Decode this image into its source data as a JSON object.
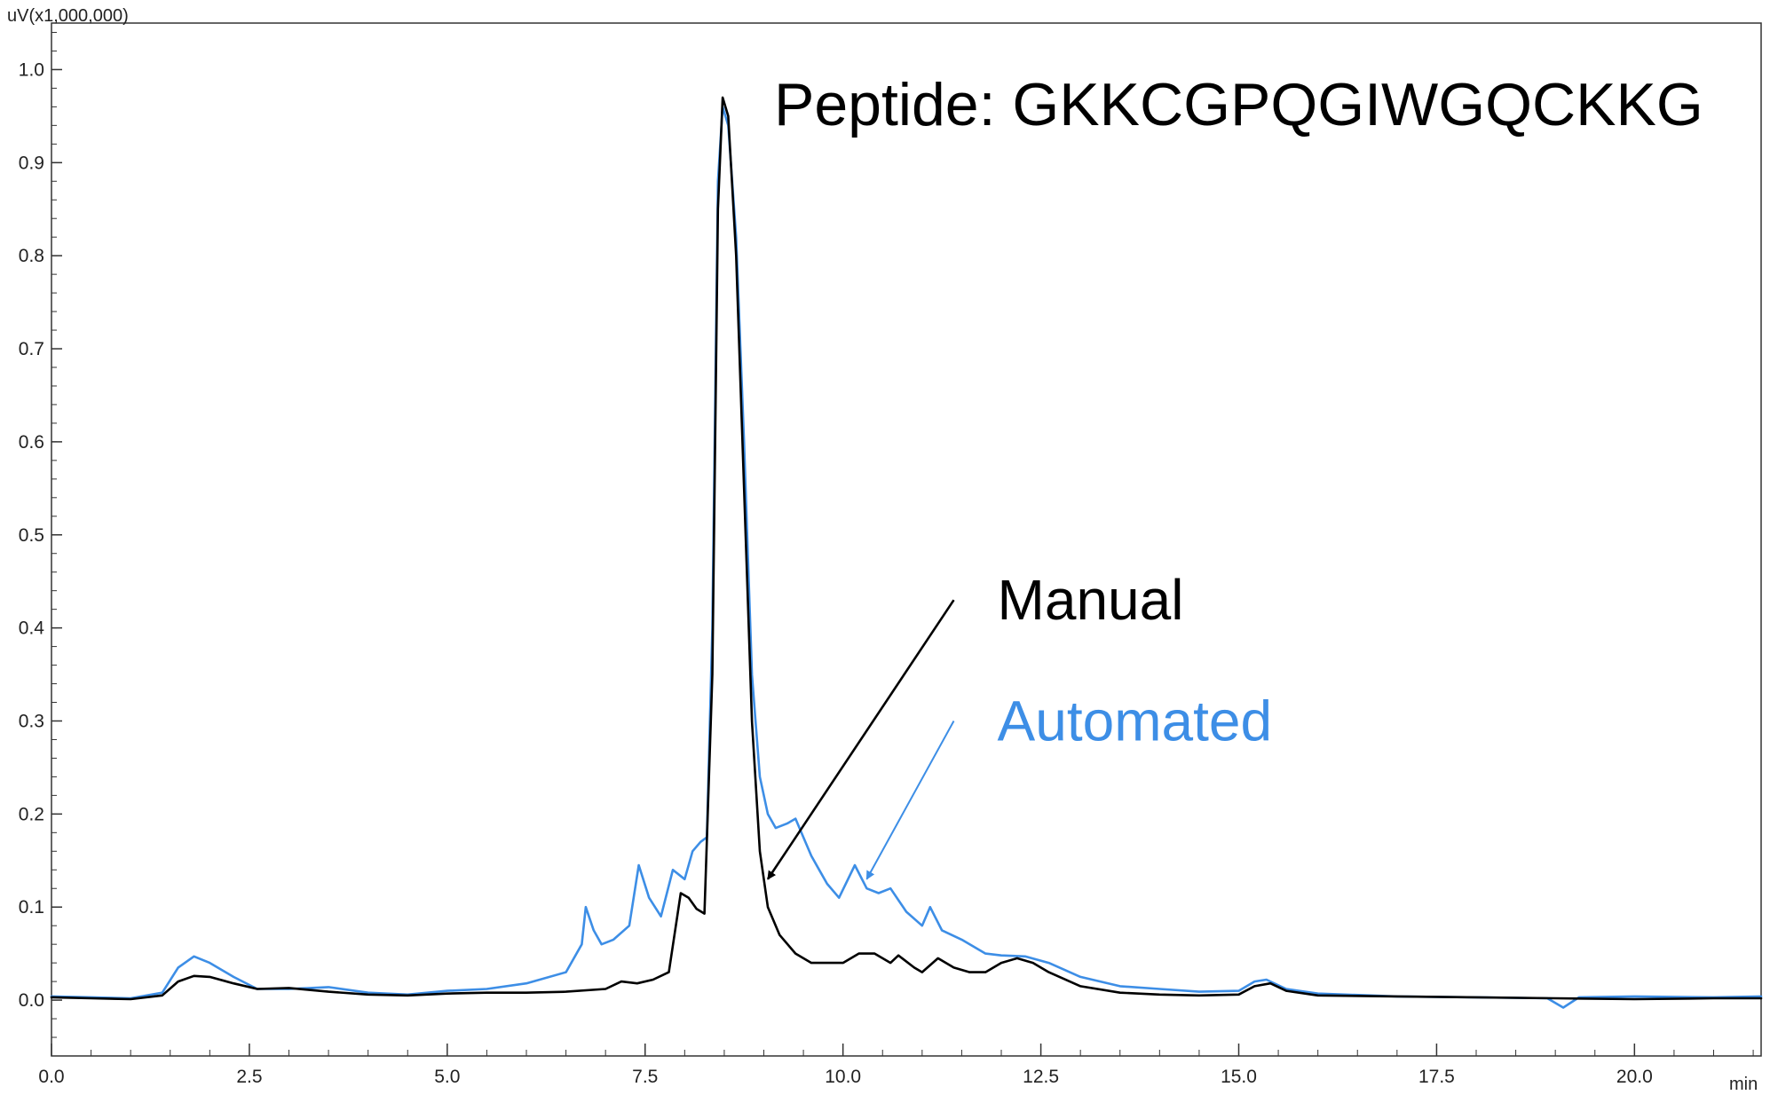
{
  "chart_data": {
    "type": "line",
    "title": "",
    "annotation_title": "Peptide: GKKCGPQGIWGQCKKG",
    "y_unit": "uV(x1,000,000)",
    "x_unit": "min",
    "xlim": [
      0,
      21.6
    ],
    "ylim": [
      -0.06,
      1.05
    ],
    "x_ticks": [
      "0.0",
      "2.5",
      "5.0",
      "7.5",
      "10.0",
      "12.5",
      "15.0",
      "17.5",
      "20.0"
    ],
    "y_ticks": [
      "0.0",
      "0.1",
      "0.2",
      "0.3",
      "0.4",
      "0.5",
      "0.6",
      "0.7",
      "0.8",
      "0.9",
      "1.0"
    ],
    "grid": false,
    "colors": {
      "manual": "#000000",
      "automated": "#3d8ee6",
      "axis": "#333333"
    },
    "series": [
      {
        "name": "Manual",
        "color": "#000000",
        "points": [
          [
            0,
            0.003
          ],
          [
            0.5,
            0.002
          ],
          [
            1.0,
            0.001
          ],
          [
            1.4,
            0.005
          ],
          [
            1.6,
            0.02
          ],
          [
            1.8,
            0.026
          ],
          [
            2.0,
            0.025
          ],
          [
            2.3,
            0.018
          ],
          [
            2.6,
            0.012
          ],
          [
            3.0,
            0.013
          ],
          [
            3.5,
            0.009
          ],
          [
            4.0,
            0.006
          ],
          [
            4.5,
            0.005
          ],
          [
            5.0,
            0.007
          ],
          [
            5.5,
            0.008
          ],
          [
            6.0,
            0.008
          ],
          [
            6.5,
            0.009
          ],
          [
            7.0,
            0.012
          ],
          [
            7.2,
            0.02
          ],
          [
            7.4,
            0.018
          ],
          [
            7.6,
            0.022
          ],
          [
            7.8,
            0.03
          ],
          [
            7.95,
            0.115
          ],
          [
            8.05,
            0.11
          ],
          [
            8.15,
            0.098
          ],
          [
            8.25,
            0.093
          ],
          [
            8.35,
            0.35
          ],
          [
            8.42,
            0.85
          ],
          [
            8.48,
            0.97
          ],
          [
            8.55,
            0.95
          ],
          [
            8.65,
            0.8
          ],
          [
            8.75,
            0.55
          ],
          [
            8.85,
            0.3
          ],
          [
            8.95,
            0.16
          ],
          [
            9.05,
            0.1
          ],
          [
            9.2,
            0.07
          ],
          [
            9.4,
            0.05
          ],
          [
            9.6,
            0.04
          ],
          [
            9.8,
            0.04
          ],
          [
            10.0,
            0.04
          ],
          [
            10.2,
            0.05
          ],
          [
            10.4,
            0.05
          ],
          [
            10.6,
            0.04
          ],
          [
            10.7,
            0.048
          ],
          [
            10.9,
            0.035
          ],
          [
            11.0,
            0.03
          ],
          [
            11.2,
            0.045
          ],
          [
            11.4,
            0.035
          ],
          [
            11.6,
            0.03
          ],
          [
            11.8,
            0.03
          ],
          [
            12.0,
            0.04
          ],
          [
            12.2,
            0.045
          ],
          [
            12.4,
            0.04
          ],
          [
            12.6,
            0.03
          ],
          [
            13.0,
            0.015
          ],
          [
            13.5,
            0.008
          ],
          [
            14.0,
            0.006
          ],
          [
            14.5,
            0.005
          ],
          [
            15.0,
            0.006
          ],
          [
            15.2,
            0.015
          ],
          [
            15.4,
            0.018
          ],
          [
            15.6,
            0.01
          ],
          [
            16.0,
            0.005
          ],
          [
            17.0,
            0.004
          ],
          [
            18.0,
            0.003
          ],
          [
            19.0,
            0.002
          ],
          [
            20.0,
            0.001
          ],
          [
            21.0,
            0.002
          ],
          [
            21.6,
            0.002
          ]
        ]
      },
      {
        "name": "Automated",
        "color": "#3d8ee6",
        "points": [
          [
            0,
            0.004
          ],
          [
            0.5,
            0.003
          ],
          [
            1.0,
            0.002
          ],
          [
            1.4,
            0.008
          ],
          [
            1.6,
            0.035
          ],
          [
            1.8,
            0.047
          ],
          [
            2.0,
            0.04
          ],
          [
            2.3,
            0.025
          ],
          [
            2.6,
            0.012
          ],
          [
            3.0,
            0.012
          ],
          [
            3.5,
            0.014
          ],
          [
            4.0,
            0.008
          ],
          [
            4.5,
            0.006
          ],
          [
            5.0,
            0.01
          ],
          [
            5.5,
            0.012
          ],
          [
            6.0,
            0.018
          ],
          [
            6.5,
            0.03
          ],
          [
            6.7,
            0.06
          ],
          [
            6.75,
            0.1
          ],
          [
            6.85,
            0.075
          ],
          [
            6.95,
            0.06
          ],
          [
            7.1,
            0.065
          ],
          [
            7.3,
            0.08
          ],
          [
            7.42,
            0.145
          ],
          [
            7.55,
            0.11
          ],
          [
            7.7,
            0.09
          ],
          [
            7.85,
            0.14
          ],
          [
            8.0,
            0.13
          ],
          [
            8.1,
            0.16
          ],
          [
            8.2,
            0.17
          ],
          [
            8.28,
            0.175
          ],
          [
            8.35,
            0.4
          ],
          [
            8.42,
            0.88
          ],
          [
            8.48,
            0.96
          ],
          [
            8.55,
            0.94
          ],
          [
            8.65,
            0.82
          ],
          [
            8.75,
            0.6
          ],
          [
            8.85,
            0.35
          ],
          [
            8.95,
            0.24
          ],
          [
            9.05,
            0.2
          ],
          [
            9.15,
            0.185
          ],
          [
            9.3,
            0.19
          ],
          [
            9.4,
            0.195
          ],
          [
            9.5,
            0.175
          ],
          [
            9.6,
            0.155
          ],
          [
            9.7,
            0.14
          ],
          [
            9.8,
            0.125
          ],
          [
            9.95,
            0.11
          ],
          [
            10.15,
            0.145
          ],
          [
            10.3,
            0.12
          ],
          [
            10.45,
            0.115
          ],
          [
            10.6,
            0.12
          ],
          [
            10.8,
            0.095
          ],
          [
            11.0,
            0.08
          ],
          [
            11.1,
            0.1
          ],
          [
            11.25,
            0.075
          ],
          [
            11.5,
            0.065
          ],
          [
            11.8,
            0.05
          ],
          [
            12.0,
            0.048
          ],
          [
            12.3,
            0.047
          ],
          [
            12.6,
            0.04
          ],
          [
            13.0,
            0.025
          ],
          [
            13.5,
            0.015
          ],
          [
            14.0,
            0.012
          ],
          [
            14.5,
            0.009
          ],
          [
            15.0,
            0.01
          ],
          [
            15.2,
            0.02
          ],
          [
            15.35,
            0.022
          ],
          [
            15.6,
            0.012
          ],
          [
            16.0,
            0.007
          ],
          [
            17.0,
            0.004
          ],
          [
            18.0,
            0.003
          ],
          [
            18.9,
            0.002
          ],
          [
            19.1,
            -0.008
          ],
          [
            19.3,
            0.003
          ],
          [
            20.0,
            0.004
          ],
          [
            21.0,
            0.003
          ],
          [
            21.6,
            0.004
          ]
        ]
      }
    ],
    "annotations": [
      {
        "text": "Manual",
        "color": "#000000",
        "x": 11.95,
        "y": 0.43,
        "arrow_from": [
          11.4,
          0.43
        ],
        "arrow_to": [
          9.05,
          0.13
        ]
      },
      {
        "text": "Automated",
        "color": "#3d8ee6",
        "x": 11.95,
        "y": 0.3,
        "arrow_from": [
          11.4,
          0.3
        ],
        "arrow_to": [
          10.3,
          0.13
        ]
      }
    ]
  }
}
